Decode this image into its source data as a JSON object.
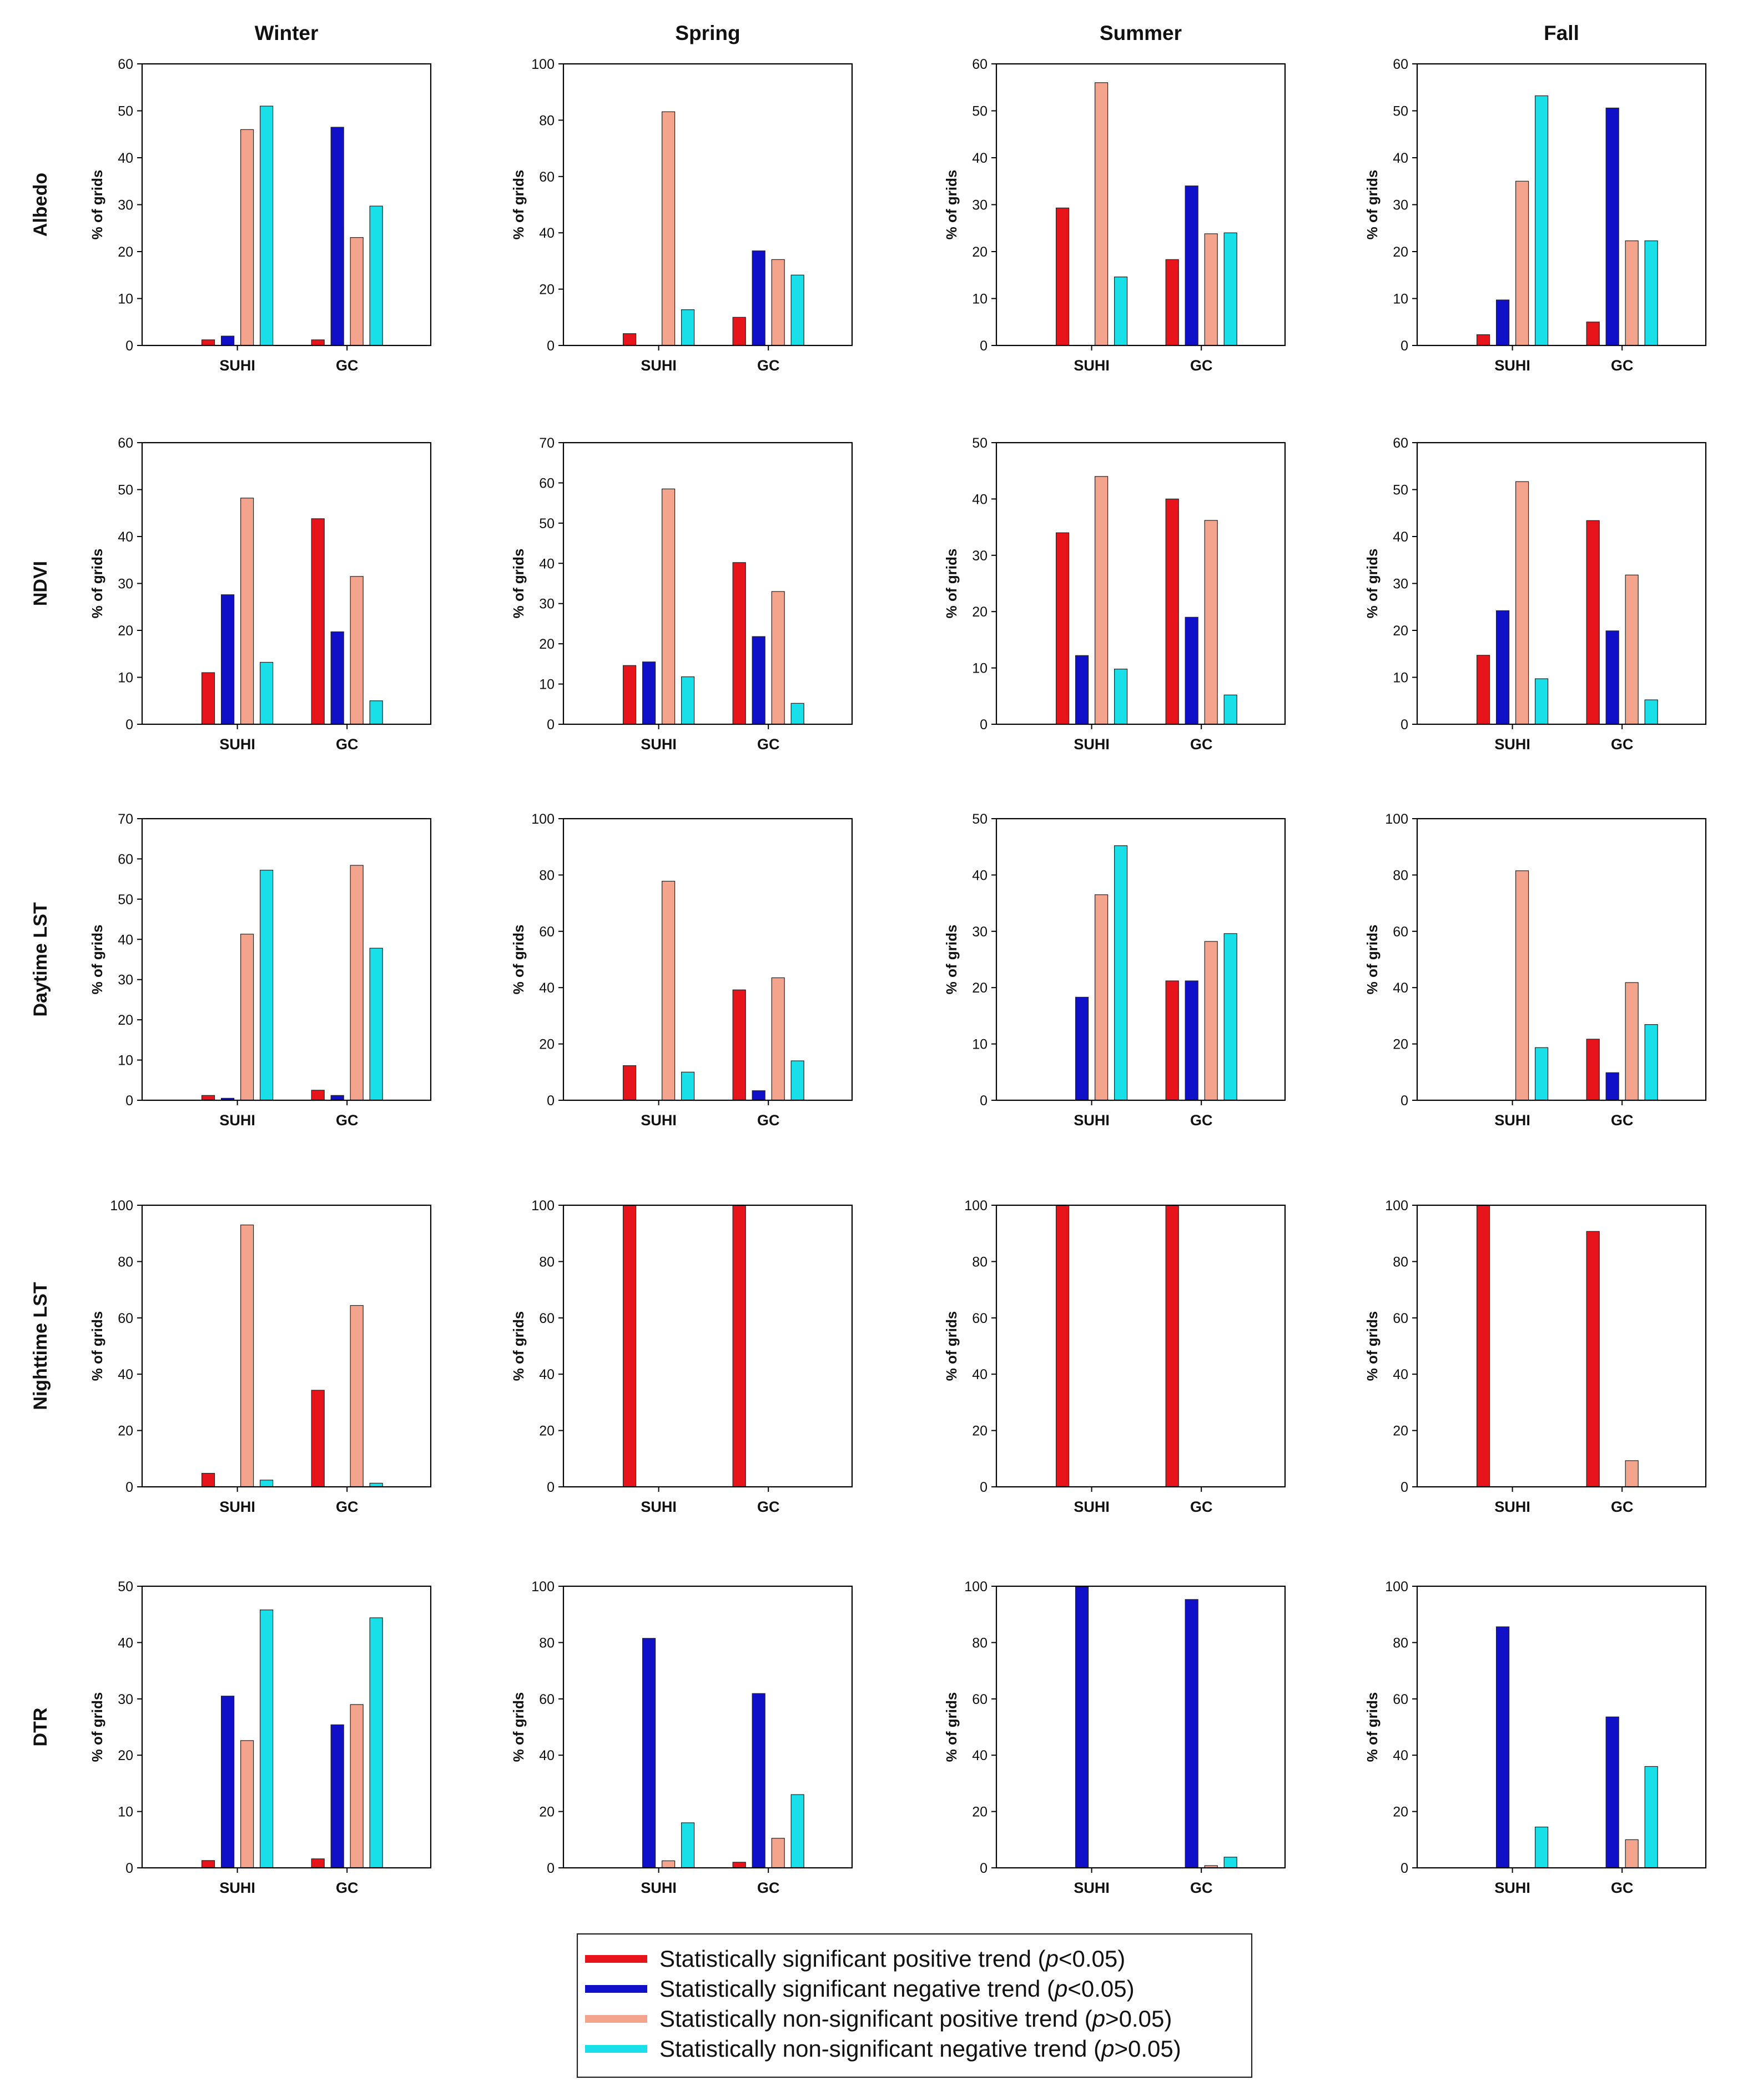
{
  "colors": {
    "sig_pos": "#e8141b",
    "sig_neg": "#1010c8",
    "nonsig_pos": "#f4a48c",
    "nonsig_neg": "#19e0e8",
    "axis": "#000000"
  },
  "legend": {
    "items": [
      {
        "key": "sig_pos",
        "text": "Statistically significant positive trend (",
        "p": "p",
        "rest": "<0.05)"
      },
      {
        "key": "sig_neg",
        "text": "Statistically significant negative trend (",
        "p": "p",
        "rest": "<0.05)"
      },
      {
        "key": "nonsig_pos",
        "text": "Statistically non-significant positive trend (",
        "p": "p",
        "rest": ">0.05)"
      },
      {
        "key": "nonsig_neg",
        "text": "Statistically non-significant negative trend (",
        "p": "p",
        "rest": ">0.05)"
      }
    ]
  },
  "seasons": [
    "Winter",
    "Spring",
    "Summer",
    "Fall"
  ],
  "variables": [
    "Albedo",
    "NDVI",
    "Daytime LST",
    "Nighttime LST",
    "DTR"
  ],
  "ylabel": "% of grids",
  "categories": [
    "SUHI",
    "GC"
  ],
  "chart_data": [
    {
      "type": "bar",
      "variable": "Albedo",
      "season": "Winter",
      "ylim": [
        0,
        60
      ],
      "yticks": [
        0,
        10,
        20,
        30,
        40,
        50,
        60
      ],
      "categories": [
        "SUHI",
        "GC"
      ],
      "ylabel": "% of grids",
      "series": [
        {
          "name": "sig_pos",
          "values": [
            1.2,
            1.2
          ]
        },
        {
          "name": "sig_neg",
          "values": [
            2,
            46.5
          ]
        },
        {
          "name": "nonsig_pos",
          "values": [
            46,
            23
          ]
        },
        {
          "name": "nonsig_neg",
          "values": [
            51,
            29.7
          ]
        }
      ]
    },
    {
      "type": "bar",
      "variable": "Albedo",
      "season": "Spring",
      "ylim": [
        0,
        100
      ],
      "yticks": [
        0,
        20,
        40,
        60,
        80,
        100
      ],
      "categories": [
        "SUHI",
        "GC"
      ],
      "ylabel": "% of grids",
      "series": [
        {
          "name": "sig_pos",
          "values": [
            4.2,
            10
          ]
        },
        {
          "name": "sig_neg",
          "values": [
            0,
            33.6
          ]
        },
        {
          "name": "nonsig_pos",
          "values": [
            83,
            30.5
          ]
        },
        {
          "name": "nonsig_neg",
          "values": [
            12.7,
            25
          ]
        }
      ]
    },
    {
      "type": "bar",
      "variable": "Albedo",
      "season": "Summer",
      "ylim": [
        0,
        60
      ],
      "yticks": [
        0,
        10,
        20,
        30,
        40,
        50,
        60
      ],
      "categories": [
        "SUHI",
        "GC"
      ],
      "ylabel": "% of grids",
      "series": [
        {
          "name": "sig_pos",
          "values": [
            29.3,
            18.3
          ]
        },
        {
          "name": "sig_neg",
          "values": [
            0,
            34
          ]
        },
        {
          "name": "nonsig_pos",
          "values": [
            56,
            23.8
          ]
        },
        {
          "name": "nonsig_neg",
          "values": [
            14.6,
            24
          ]
        }
      ]
    },
    {
      "type": "bar",
      "variable": "Albedo",
      "season": "Fall",
      "ylim": [
        0,
        60
      ],
      "yticks": [
        0,
        10,
        20,
        30,
        40,
        50,
        60
      ],
      "categories": [
        "SUHI",
        "GC"
      ],
      "ylabel": "% of grids",
      "series": [
        {
          "name": "sig_pos",
          "values": [
            2.3,
            5
          ]
        },
        {
          "name": "sig_neg",
          "values": [
            9.7,
            50.6
          ]
        },
        {
          "name": "nonsig_pos",
          "values": [
            35,
            22.3
          ]
        },
        {
          "name": "nonsig_neg",
          "values": [
            53.2,
            22.3
          ]
        }
      ]
    },
    {
      "type": "bar",
      "variable": "NDVI",
      "season": "Winter",
      "ylim": [
        0,
        60
      ],
      "yticks": [
        0,
        10,
        20,
        30,
        40,
        50,
        60
      ],
      "categories": [
        "SUHI",
        "GC"
      ],
      "ylabel": "% of grids",
      "series": [
        {
          "name": "sig_pos",
          "values": [
            11,
            43.8
          ]
        },
        {
          "name": "sig_neg",
          "values": [
            27.6,
            19.7
          ]
        },
        {
          "name": "nonsig_pos",
          "values": [
            48.2,
            31.5
          ]
        },
        {
          "name": "nonsig_neg",
          "values": [
            13.2,
            5
          ]
        }
      ]
    },
    {
      "type": "bar",
      "variable": "NDVI",
      "season": "Spring",
      "ylim": [
        0,
        70
      ],
      "yticks": [
        0,
        10,
        20,
        30,
        40,
        50,
        60,
        70
      ],
      "categories": [
        "SUHI",
        "GC"
      ],
      "ylabel": "% of grids",
      "series": [
        {
          "name": "sig_pos",
          "values": [
            14.6,
            40.2
          ]
        },
        {
          "name": "sig_neg",
          "values": [
            15.5,
            21.8
          ]
        },
        {
          "name": "nonsig_pos",
          "values": [
            58.5,
            33
          ]
        },
        {
          "name": "nonsig_neg",
          "values": [
            11.8,
            5.2
          ]
        }
      ]
    },
    {
      "type": "bar",
      "variable": "NDVI",
      "season": "Summer",
      "ylim": [
        0,
        50
      ],
      "yticks": [
        0,
        10,
        20,
        30,
        40,
        50
      ],
      "categories": [
        "SUHI",
        "GC"
      ],
      "ylabel": "% of grids",
      "series": [
        {
          "name": "sig_pos",
          "values": [
            34,
            40
          ]
        },
        {
          "name": "sig_neg",
          "values": [
            12.2,
            19
          ]
        },
        {
          "name": "nonsig_pos",
          "values": [
            44,
            36.2
          ]
        },
        {
          "name": "nonsig_neg",
          "values": [
            9.8,
            5.2
          ]
        }
      ]
    },
    {
      "type": "bar",
      "variable": "NDVI",
      "season": "Fall",
      "ylim": [
        0,
        60
      ],
      "yticks": [
        0,
        10,
        20,
        30,
        40,
        50,
        60
      ],
      "categories": [
        "SUHI",
        "GC"
      ],
      "ylabel": "% of grids",
      "series": [
        {
          "name": "sig_pos",
          "values": [
            14.7,
            43.4
          ]
        },
        {
          "name": "sig_neg",
          "values": [
            24.2,
            19.9
          ]
        },
        {
          "name": "nonsig_pos",
          "values": [
            51.7,
            31.8
          ]
        },
        {
          "name": "nonsig_neg",
          "values": [
            9.7,
            5.2
          ]
        }
      ]
    },
    {
      "type": "bar",
      "variable": "Daytime LST",
      "season": "Winter",
      "ylim": [
        0,
        70
      ],
      "yticks": [
        0,
        10,
        20,
        30,
        40,
        50,
        60,
        70
      ],
      "categories": [
        "SUHI",
        "GC"
      ],
      "ylabel": "% of grids",
      "series": [
        {
          "name": "sig_pos",
          "values": [
            1.2,
            2.5
          ]
        },
        {
          "name": "sig_neg",
          "values": [
            0.5,
            1.2
          ]
        },
        {
          "name": "nonsig_pos",
          "values": [
            41.3,
            58.4
          ]
        },
        {
          "name": "nonsig_neg",
          "values": [
            57.2,
            37.8
          ]
        }
      ]
    },
    {
      "type": "bar",
      "variable": "Daytime LST",
      "season": "Spring",
      "ylim": [
        0,
        100
      ],
      "yticks": [
        0,
        20,
        40,
        60,
        80,
        100
      ],
      "categories": [
        "SUHI",
        "GC"
      ],
      "ylabel": "% of grids",
      "series": [
        {
          "name": "sig_pos",
          "values": [
            12.3,
            39.2
          ]
        },
        {
          "name": "sig_neg",
          "values": [
            0,
            3.4
          ]
        },
        {
          "name": "nonsig_pos",
          "values": [
            77.8,
            43.5
          ]
        },
        {
          "name": "nonsig_neg",
          "values": [
            10,
            14
          ]
        }
      ]
    },
    {
      "type": "bar",
      "variable": "Daytime LST",
      "season": "Summer",
      "ylim": [
        0,
        50
      ],
      "yticks": [
        0,
        10,
        20,
        30,
        40,
        50
      ],
      "categories": [
        "SUHI",
        "GC"
      ],
      "ylabel": "% of grids",
      "series": [
        {
          "name": "sig_pos",
          "values": [
            0,
            21.2
          ]
        },
        {
          "name": "sig_neg",
          "values": [
            18.3,
            21.2
          ]
        },
        {
          "name": "nonsig_pos",
          "values": [
            36.5,
            28.2
          ]
        },
        {
          "name": "nonsig_neg",
          "values": [
            45.2,
            29.6
          ]
        }
      ]
    },
    {
      "type": "bar",
      "variable": "Daytime LST",
      "season": "Fall",
      "ylim": [
        0,
        100
      ],
      "yticks": [
        0,
        20,
        40,
        60,
        80,
        100
      ],
      "categories": [
        "SUHI",
        "GC"
      ],
      "ylabel": "% of grids",
      "series": [
        {
          "name": "sig_pos",
          "values": [
            0,
            21.7
          ]
        },
        {
          "name": "sig_neg",
          "values": [
            0,
            9.8
          ]
        },
        {
          "name": "nonsig_pos",
          "values": [
            81.5,
            41.8
          ]
        },
        {
          "name": "nonsig_neg",
          "values": [
            18.7,
            26.9
          ]
        }
      ]
    },
    {
      "type": "bar",
      "variable": "Nighttime LST",
      "season": "Winter",
      "ylim": [
        0,
        100
      ],
      "yticks": [
        0,
        20,
        40,
        60,
        80,
        100
      ],
      "categories": [
        "SUHI",
        "GC"
      ],
      "ylabel": "% of grids",
      "series": [
        {
          "name": "sig_pos",
          "values": [
            4.8,
            34.3
          ]
        },
        {
          "name": "sig_neg",
          "values": [
            0,
            0
          ]
        },
        {
          "name": "nonsig_pos",
          "values": [
            93,
            64.4
          ]
        },
        {
          "name": "nonsig_neg",
          "values": [
            2.4,
            1.3
          ]
        }
      ]
    },
    {
      "type": "bar",
      "variable": "Nighttime LST",
      "season": "Spring",
      "ylim": [
        0,
        100
      ],
      "yticks": [
        0,
        20,
        40,
        60,
        80,
        100
      ],
      "categories": [
        "SUHI",
        "GC"
      ],
      "ylabel": "% of grids",
      "series": [
        {
          "name": "sig_pos",
          "values": [
            100,
            100
          ]
        },
        {
          "name": "sig_neg",
          "values": [
            0,
            0
          ]
        },
        {
          "name": "nonsig_pos",
          "values": [
            0,
            0
          ]
        },
        {
          "name": "nonsig_neg",
          "values": [
            0,
            0
          ]
        }
      ]
    },
    {
      "type": "bar",
      "variable": "Nighttime LST",
      "season": "Summer",
      "ylim": [
        0,
        100
      ],
      "yticks": [
        0,
        20,
        40,
        60,
        80,
        100
      ],
      "categories": [
        "SUHI",
        "GC"
      ],
      "ylabel": "% of grids",
      "series": [
        {
          "name": "sig_pos",
          "values": [
            100,
            100
          ]
        },
        {
          "name": "sig_neg",
          "values": [
            0,
            0
          ]
        },
        {
          "name": "nonsig_pos",
          "values": [
            0,
            0
          ]
        },
        {
          "name": "nonsig_neg",
          "values": [
            0,
            0
          ]
        }
      ]
    },
    {
      "type": "bar",
      "variable": "Nighttime LST",
      "season": "Fall",
      "ylim": [
        0,
        100
      ],
      "yticks": [
        0,
        20,
        40,
        60,
        80,
        100
      ],
      "categories": [
        "SUHI",
        "GC"
      ],
      "ylabel": "% of grids",
      "series": [
        {
          "name": "sig_pos",
          "values": [
            100,
            90.7
          ]
        },
        {
          "name": "sig_neg",
          "values": [
            0,
            0
          ]
        },
        {
          "name": "nonsig_pos",
          "values": [
            0,
            9.3
          ]
        },
        {
          "name": "nonsig_neg",
          "values": [
            0,
            0
          ]
        }
      ]
    },
    {
      "type": "bar",
      "variable": "DTR",
      "season": "Winter",
      "ylim": [
        0,
        50
      ],
      "yticks": [
        0,
        10,
        20,
        30,
        40,
        50
      ],
      "categories": [
        "SUHI",
        "GC"
      ],
      "ylabel": "% of grids",
      "series": [
        {
          "name": "sig_pos",
          "values": [
            1.3,
            1.6
          ]
        },
        {
          "name": "sig_neg",
          "values": [
            30.5,
            25.4
          ]
        },
        {
          "name": "nonsig_pos",
          "values": [
            22.6,
            29
          ]
        },
        {
          "name": "nonsig_neg",
          "values": [
            45.8,
            44.4
          ]
        }
      ]
    },
    {
      "type": "bar",
      "variable": "DTR",
      "season": "Spring",
      "ylim": [
        0,
        100
      ],
      "yticks": [
        0,
        20,
        40,
        60,
        80,
        100
      ],
      "categories": [
        "SUHI",
        "GC"
      ],
      "ylabel": "% of grids",
      "series": [
        {
          "name": "sig_pos",
          "values": [
            0,
            2
          ]
        },
        {
          "name": "sig_neg",
          "values": [
            81.5,
            61.9
          ]
        },
        {
          "name": "nonsig_pos",
          "values": [
            2.5,
            10.5
          ]
        },
        {
          "name": "nonsig_neg",
          "values": [
            16,
            26
          ]
        }
      ]
    },
    {
      "type": "bar",
      "variable": "DTR",
      "season": "Summer",
      "ylim": [
        0,
        100
      ],
      "yticks": [
        0,
        20,
        40,
        60,
        80,
        100
      ],
      "categories": [
        "SUHI",
        "GC"
      ],
      "ylabel": "% of grids",
      "series": [
        {
          "name": "sig_pos",
          "values": [
            0,
            0
          ]
        },
        {
          "name": "sig_neg",
          "values": [
            100,
            95.3
          ]
        },
        {
          "name": "nonsig_pos",
          "values": [
            0,
            0.8
          ]
        },
        {
          "name": "nonsig_neg",
          "values": [
            0,
            3.8
          ]
        }
      ]
    },
    {
      "type": "bar",
      "variable": "DTR",
      "season": "Fall",
      "ylim": [
        0,
        100
      ],
      "yticks": [
        0,
        20,
        40,
        60,
        80,
        100
      ],
      "categories": [
        "SUHI",
        "GC"
      ],
      "ylabel": "% of grids",
      "series": [
        {
          "name": "sig_pos",
          "values": [
            0,
            0
          ]
        },
        {
          "name": "sig_neg",
          "values": [
            85.6,
            53.6
          ]
        },
        {
          "name": "nonsig_pos",
          "values": [
            0,
            10
          ]
        },
        {
          "name": "nonsig_neg",
          "values": [
            14.5,
            36
          ]
        }
      ]
    }
  ]
}
